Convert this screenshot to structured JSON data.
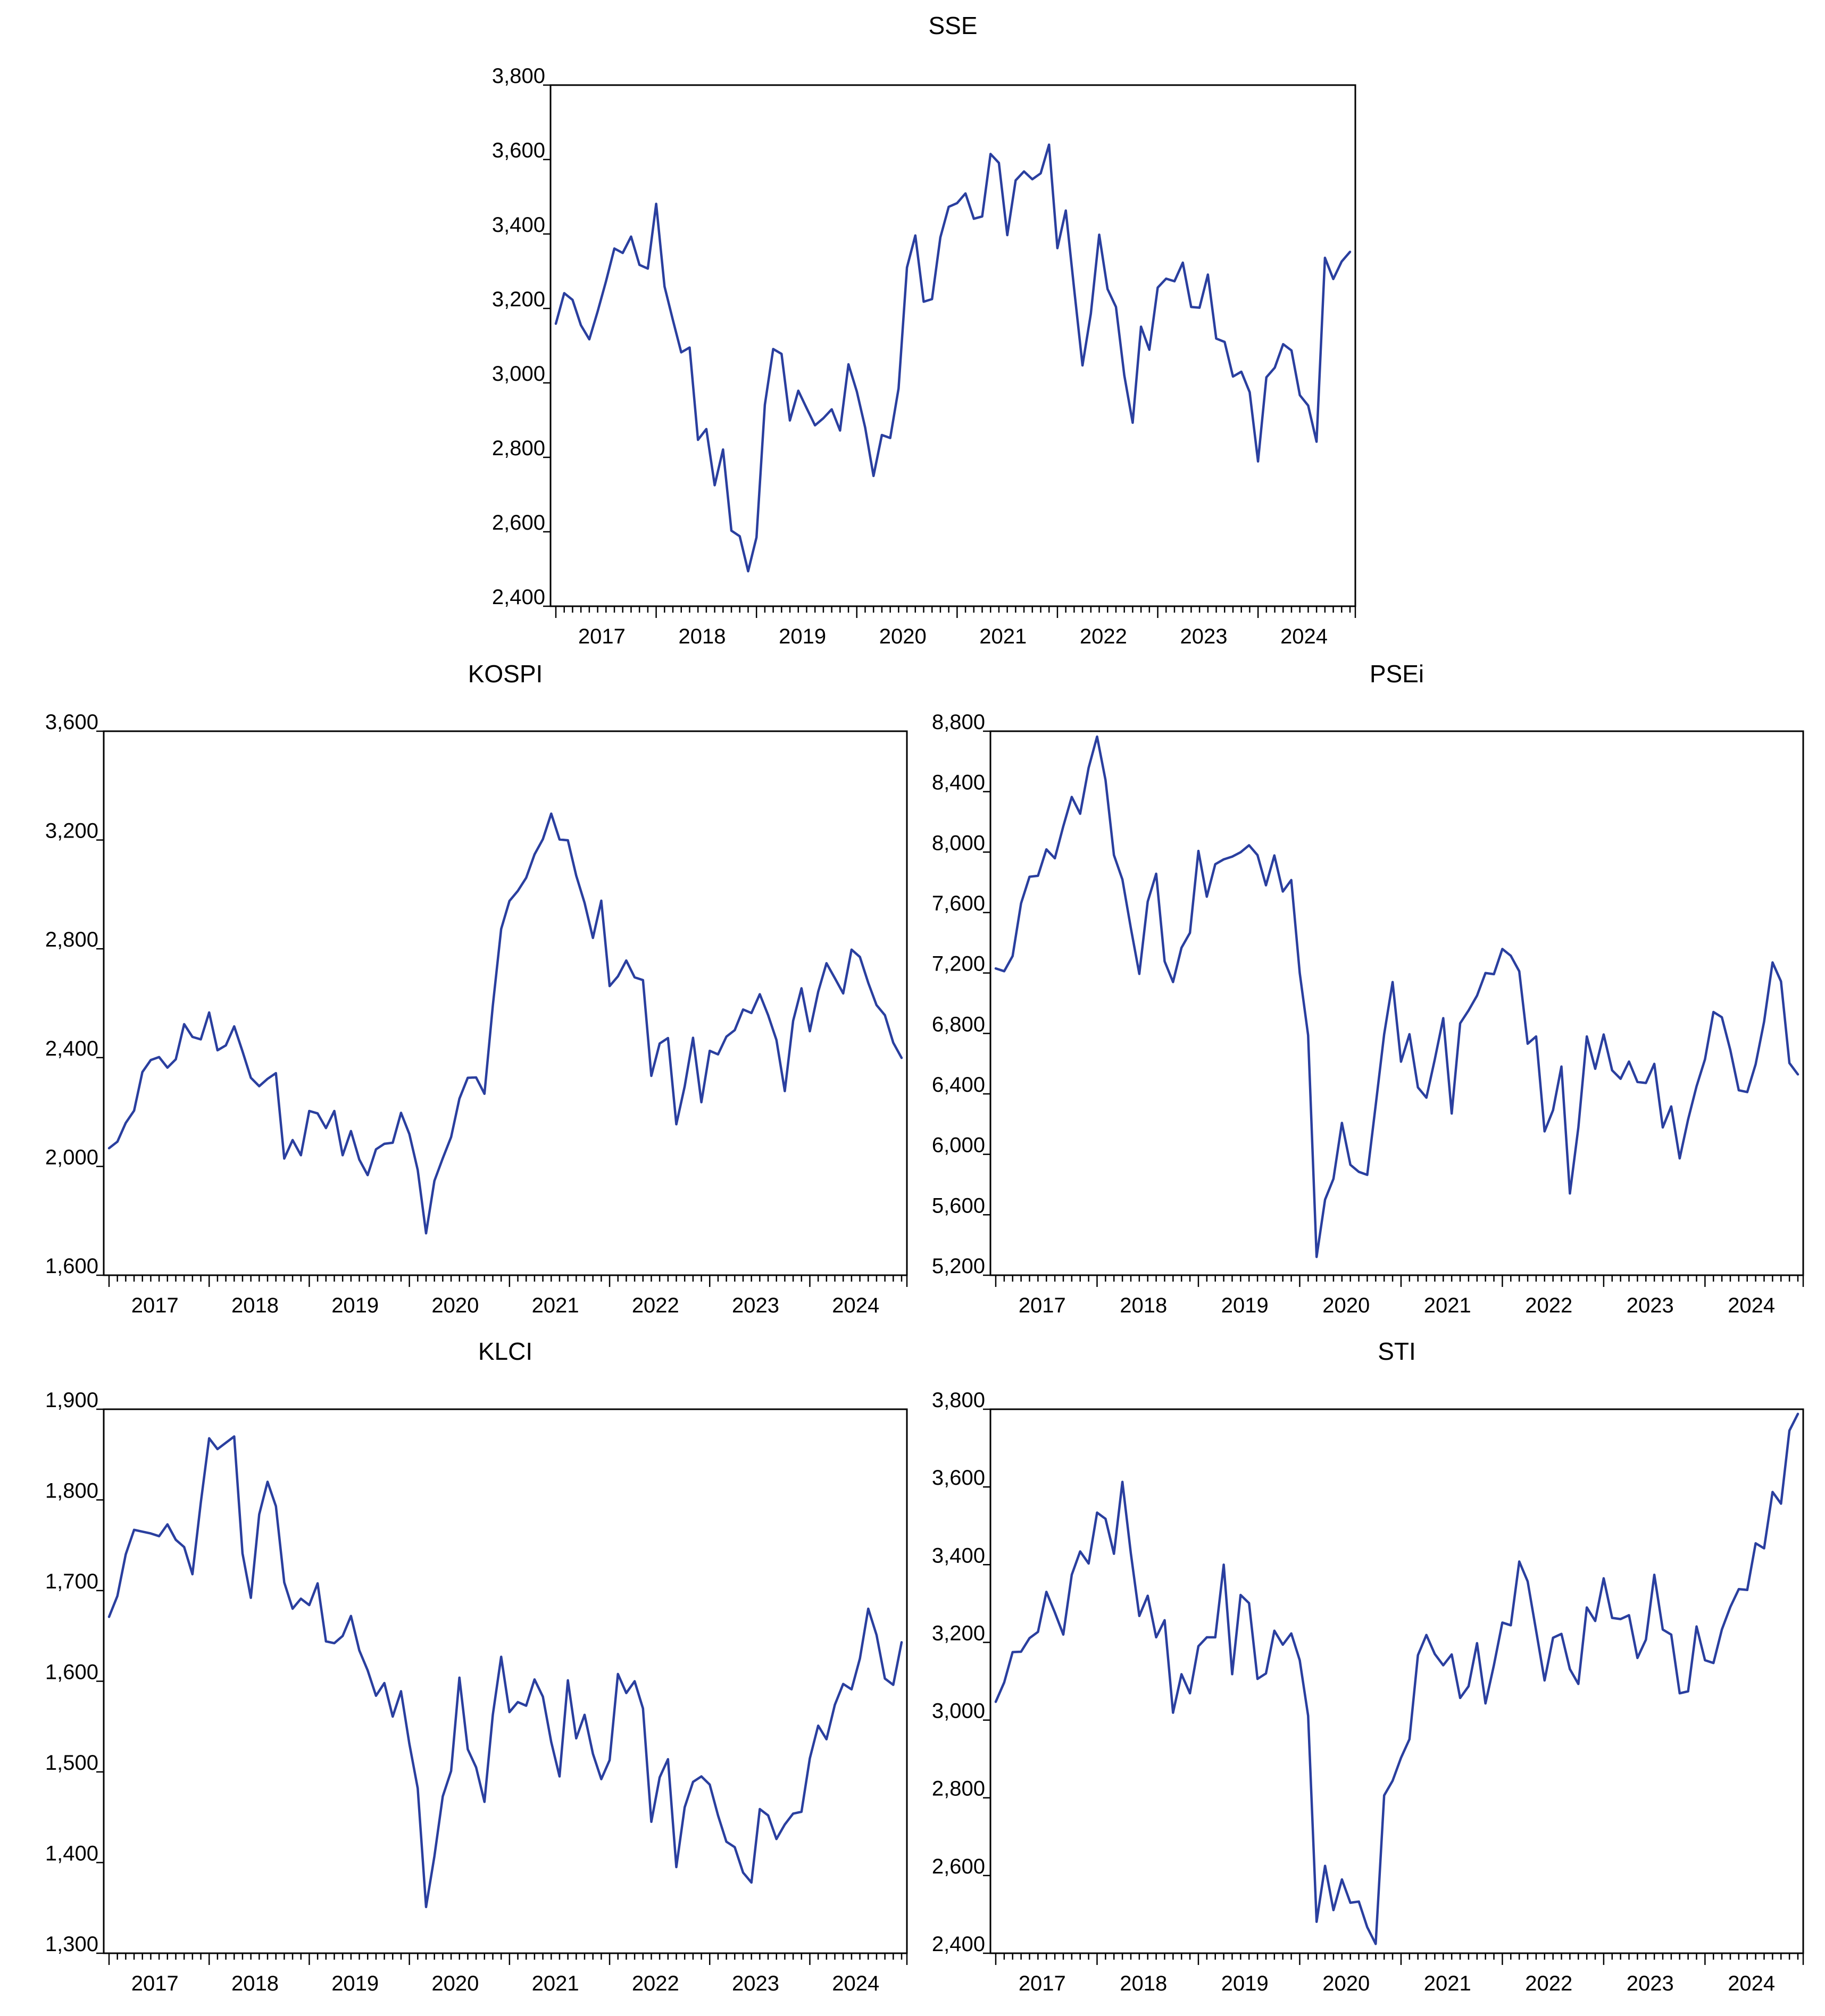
{
  "chart_data": [
    {
      "type": "line",
      "title": "SSE",
      "x_start": "2017-01",
      "x_end": "2024-12",
      "x_ticks": [
        "2017",
        "2018",
        "2019",
        "2020",
        "2021",
        "2022",
        "2023",
        "2024"
      ],
      "ylim": [
        2400,
        3800
      ],
      "y_ticks": [
        "2,400",
        "2,600",
        "2,800",
        "3,000",
        "3,200",
        "3,400",
        "3,600",
        "3,800"
      ],
      "grid": false,
      "series": [
        {
          "values": [
            3159,
            3241,
            3223,
            3155,
            3117,
            3192,
            3273,
            3361,
            3349,
            3393,
            3317,
            3307,
            3481,
            3259,
            3169,
            3082,
            3095,
            2847,
            2876,
            2725,
            2821,
            2603,
            2588,
            2494,
            2585,
            2941,
            3091,
            3078,
            2899,
            2979,
            2932,
            2886,
            2905,
            2929,
            2872,
            3050,
            2977,
            2880,
            2750,
            2860,
            2852,
            2985,
            3310,
            3396,
            3218,
            3225,
            3391,
            3473,
            3483,
            3509,
            3441,
            3447,
            3615,
            3591,
            3397,
            3544,
            3568,
            3547,
            3563,
            3640,
            3362,
            3463,
            3252,
            3047,
            3186,
            3398,
            3252,
            3204,
            3020,
            2893,
            3151,
            3089,
            3256,
            3280,
            3273,
            3323,
            3204,
            3202,
            3291,
            3119,
            3110,
            3017,
            3030,
            2975,
            2789,
            3015,
            3041,
            3104,
            3087,
            2967,
            2939,
            2842,
            3336,
            3279,
            3326,
            3352
          ]
        }
      ]
    },
    {
      "type": "line",
      "title": "KOSPI",
      "x_start": "2017-01",
      "x_end": "2024-12",
      "x_ticks": [
        "2017",
        "2018",
        "2019",
        "2020",
        "2021",
        "2022",
        "2023",
        "2024"
      ],
      "ylim": [
        1600,
        3600
      ],
      "y_ticks": [
        "1,600",
        "2,000",
        "2,400",
        "2,800",
        "3,200",
        "3,600"
      ],
      "grid": false,
      "series": [
        {
          "values": [
            2067,
            2091,
            2160,
            2205,
            2347,
            2391,
            2402,
            2363,
            2394,
            2523,
            2476,
            2467,
            2566,
            2427,
            2445,
            2515,
            2423,
            2326,
            2295,
            2322,
            2343,
            2029,
            2097,
            2041,
            2204,
            2195,
            2141,
            2204,
            2041,
            2130,
            2025,
            1968,
            2063,
            2083,
            2087,
            2197,
            2119,
            1987,
            1754,
            1947,
            2030,
            2108,
            2249,
            2326,
            2327,
            2267,
            2591,
            2873,
            2976,
            3013,
            3061,
            3147,
            3203,
            3297,
            3202,
            3199,
            3069,
            2969,
            2840,
            2977,
            2663,
            2699,
            2757,
            2695,
            2685,
            2333,
            2452,
            2472,
            2155,
            2294,
            2473,
            2236,
            2425,
            2412,
            2477,
            2501,
            2577,
            2564,
            2633,
            2556,
            2465,
            2277,
            2535,
            2655,
            2497,
            2642,
            2747,
            2692,
            2636,
            2797,
            2770,
            2675,
            2593,
            2556,
            2455,
            2399
          ]
        }
      ]
    },
    {
      "type": "line",
      "title": "PSEi",
      "x_start": "2017-01",
      "x_end": "2024-12",
      "x_ticks": [
        "2017",
        "2018",
        "2019",
        "2020",
        "2021",
        "2022",
        "2023",
        "2024"
      ],
      "ylim": [
        5200,
        8800
      ],
      "y_ticks": [
        "5,200",
        "5,600",
        "6,000",
        "6,400",
        "6,800",
        "7,200",
        "7,600",
        "8,000",
        "8,400",
        "8,800"
      ],
      "grid": false,
      "series": [
        {
          "values": [
            7230,
            7212,
            7312,
            7661,
            7837,
            7843,
            8018,
            7959,
            8171,
            8365,
            8254,
            8558,
            8764,
            8476,
            7980,
            7819,
            7497,
            7194,
            7672,
            7857,
            7277,
            7140,
            7367,
            7466,
            8008,
            7705,
            7920,
            7952,
            7970,
            7999,
            8045,
            7980,
            7780,
            7978,
            7739,
            7815,
            7200,
            6787,
            5321,
            5700,
            5838,
            6208,
            5931,
            5884,
            5864,
            6325,
            6794,
            7140,
            6613,
            6795,
            6443,
            6375,
            6628,
            6901,
            6270,
            6867,
            6952,
            7050,
            7200,
            7192,
            7359,
            7314,
            7211,
            6732,
            6780,
            6152,
            6292,
            6581,
            5741,
            6177,
            6780,
            6566,
            6793,
            6556,
            6500,
            6614,
            6479,
            6472,
            6599,
            6178,
            6317,
            5973,
            6230,
            6450,
            6629,
            6942,
            6907,
            6690,
            6424,
            6412,
            6596,
            6878,
            7270,
            7144,
            6604,
            6529
          ]
        }
      ]
    },
    {
      "type": "line",
      "title": "KLCI",
      "x_start": "2017-01",
      "x_end": "2024-12",
      "x_ticks": [
        "2017",
        "2018",
        "2019",
        "2020",
        "2021",
        "2022",
        "2023",
        "2024"
      ],
      "ylim": [
        1300,
        1900
      ],
      "y_ticks": [
        "1,300",
        "1,400",
        "1,500",
        "1,600",
        "1,700",
        "1,800",
        "1,900"
      ],
      "grid": false,
      "series": [
        {
          "values": [
            1671,
            1694,
            1740,
            1767,
            1765,
            1763,
            1760,
            1773,
            1756,
            1748,
            1718,
            1797,
            1868,
            1856,
            1863,
            1870,
            1741,
            1692,
            1784,
            1820,
            1793,
            1709,
            1680,
            1691,
            1684,
            1708,
            1644,
            1642,
            1650,
            1672,
            1634,
            1612,
            1584,
            1598,
            1561,
            1589,
            1531,
            1482,
            1351,
            1407,
            1473,
            1501,
            1604,
            1525,
            1505,
            1467,
            1563,
            1627,
            1566,
            1577,
            1573,
            1602,
            1583,
            1533,
            1495,
            1601,
            1537,
            1563,
            1520,
            1492,
            1513,
            1608,
            1587,
            1600,
            1570,
            1445,
            1494,
            1514,
            1395,
            1461,
            1489,
            1495,
            1486,
            1452,
            1423,
            1417,
            1389,
            1378,
            1459,
            1452,
            1426,
            1442,
            1454,
            1456,
            1515,
            1551,
            1536,
            1574,
            1597,
            1591,
            1625,
            1680,
            1651,
            1603,
            1596,
            1643
          ]
        }
      ]
    },
    {
      "type": "line",
      "title": "STI",
      "x_start": "2017-01",
      "x_end": "2024-12",
      "x_ticks": [
        "2017",
        "2018",
        "2019",
        "2020",
        "2021",
        "2022",
        "2023",
        "2024"
      ],
      "ylim": [
        2400,
        3800
      ],
      "y_ticks": [
        "2,400",
        "2,600",
        "2,800",
        "3,000",
        "3,200",
        "3,400",
        "3,600",
        "3,800"
      ],
      "grid": false,
      "series": [
        {
          "values": [
            3047,
            3097,
            3175,
            3176,
            3211,
            3227,
            3330,
            3277,
            3220,
            3374,
            3434,
            3403,
            3534,
            3518,
            3428,
            3613,
            3429,
            3268,
            3320,
            3213,
            3257,
            3019,
            3118,
            3069,
            3190,
            3213,
            3213,
            3400,
            3118,
            3322,
            3301,
            3106,
            3120,
            3230,
            3194,
            3223,
            3154,
            3011,
            2481,
            2625,
            2511,
            2590,
            2530,
            2533,
            2467,
            2424,
            2806,
            2844,
            2903,
            2951,
            3167,
            3219,
            3170,
            3141,
            3169,
            3057,
            3087,
            3198,
            3043,
            3141,
            3251,
            3244,
            3408,
            3357,
            3230,
            3102,
            3212,
            3222,
            3131,
            3093,
            3290,
            3255,
            3365,
            3263,
            3260,
            3270,
            3160,
            3207,
            3374,
            3233,
            3220,
            3069,
            3074,
            3241,
            3154,
            3147,
            3233,
            3291,
            3337,
            3335,
            3455,
            3442,
            3587,
            3557,
            3745,
            3788
          ]
        }
      ]
    }
  ]
}
